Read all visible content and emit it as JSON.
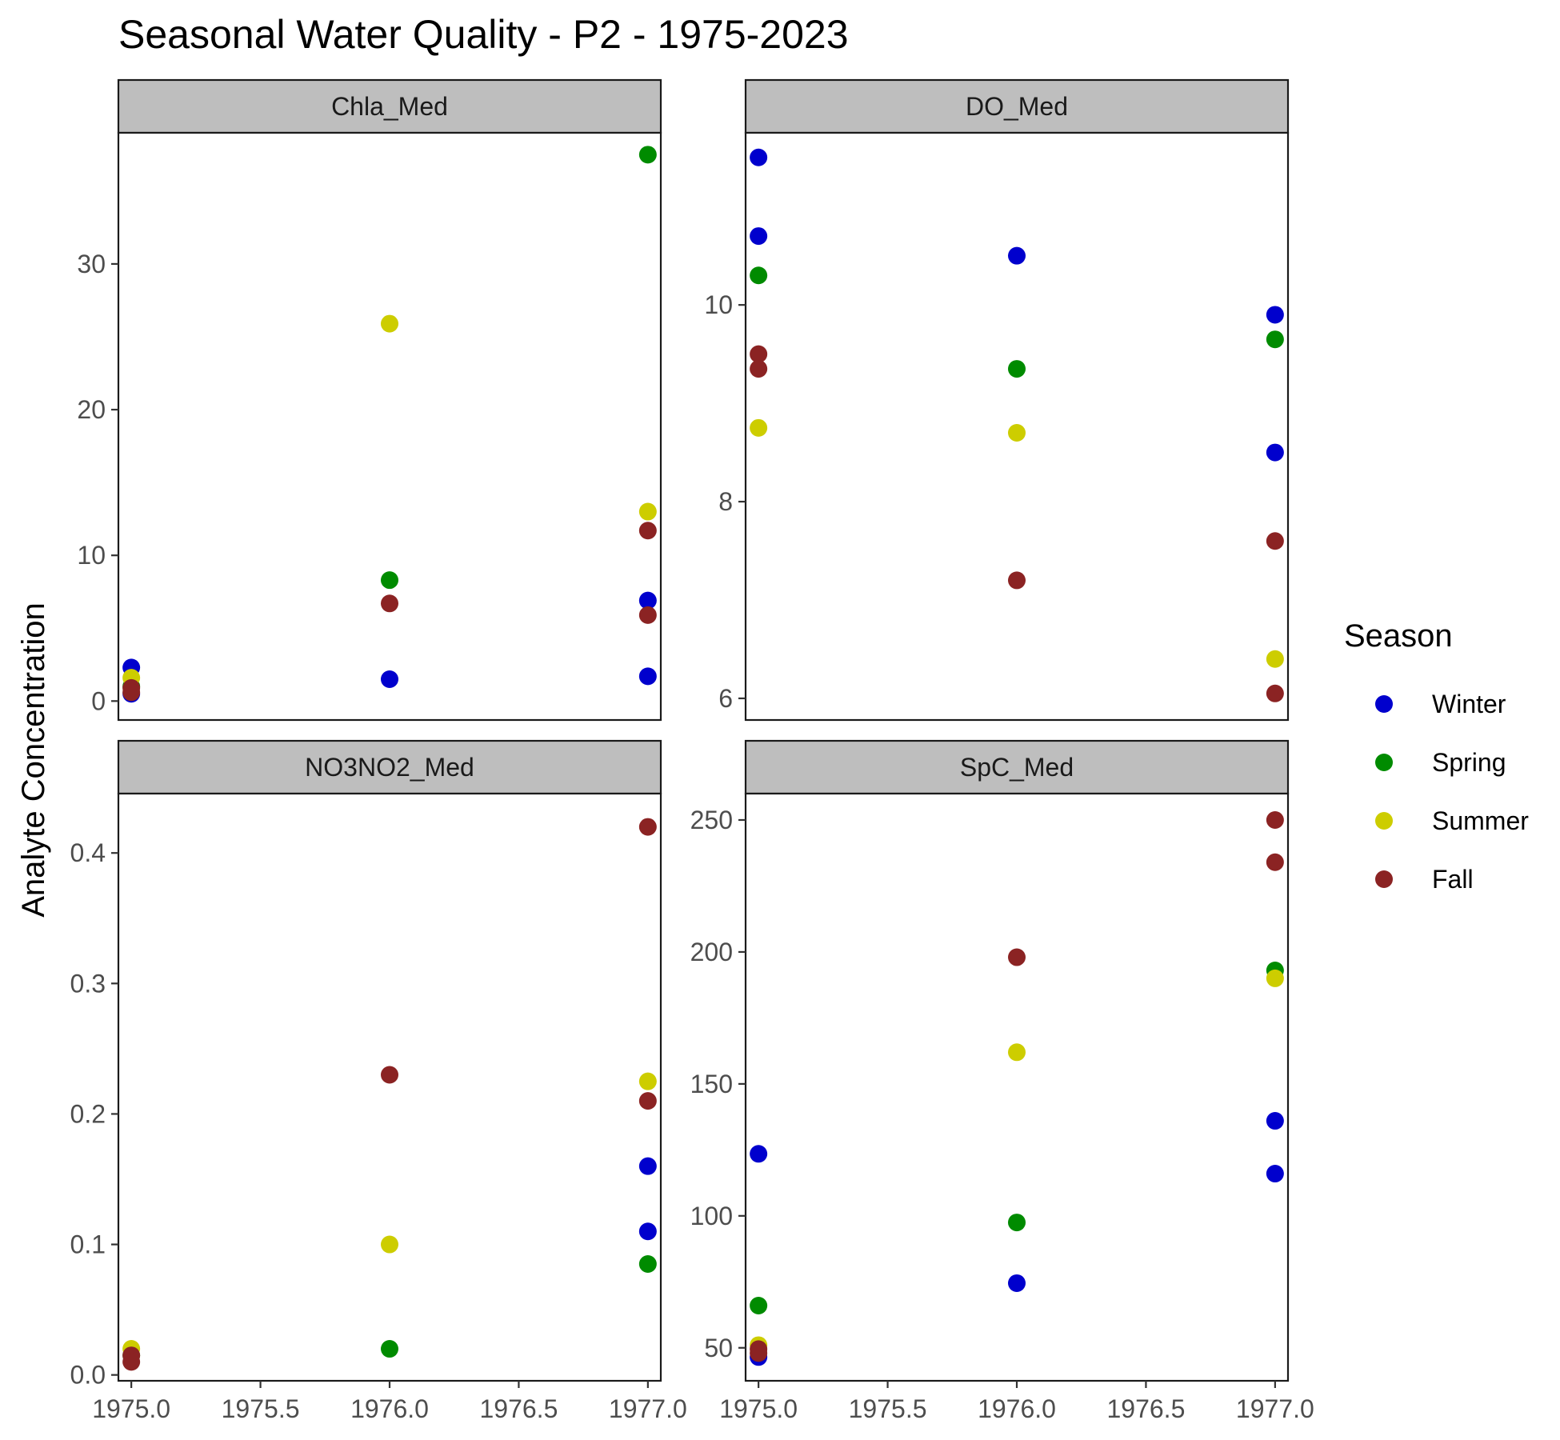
{
  "chart_data": {
    "type": "scatter",
    "title": "Seasonal Water Quality - P2 - 1975-2023",
    "ylabel": "Analyte Concentration",
    "xlabel": "",
    "xlim": [
      1974.95,
      1977.05
    ],
    "x_ticks": [
      1975.0,
      1975.5,
      1976.0,
      1976.5,
      1977.0
    ],
    "x_tick_labels": [
      "1975.0",
      "1975.5",
      "1976.0",
      "1976.5",
      "1977.0"
    ],
    "legend": {
      "title": "Season",
      "position": "right",
      "entries": [
        {
          "name": "Winter",
          "color": "#0000CD"
        },
        {
          "name": "Spring",
          "color": "#008B00"
        },
        {
          "name": "Summer",
          "color": "#CDCD00"
        },
        {
          "name": "Fall",
          "color": "#8B2323"
        }
      ]
    },
    "panels": [
      {
        "name": "Chla_Med",
        "ylim": [
          -1.3,
          39.0
        ],
        "y_ticks": [
          0,
          10,
          20,
          30
        ],
        "y_tick_labels": [
          "0",
          "10",
          "20",
          "30"
        ],
        "series": [
          {
            "name": "Winter",
            "x": [
              1975,
              1975,
              1976,
              1977,
              1977
            ],
            "y": [
              2.3,
              0.5,
              1.5,
              1.7,
              6.9
            ]
          },
          {
            "name": "Spring",
            "x": [
              1975,
              1976,
              1977
            ],
            "y": [
              1.0,
              8.3,
              37.5
            ]
          },
          {
            "name": "Summer",
            "x": [
              1975,
              1976,
              1977
            ],
            "y": [
              1.6,
              25.9,
              13.0
            ]
          },
          {
            "name": "Fall",
            "x": [
              1975,
              1975,
              1976,
              1977,
              1977
            ],
            "y": [
              0.9,
              0.6,
              6.7,
              11.7,
              5.9
            ]
          }
        ]
      },
      {
        "name": "DO_Med",
        "ylim": [
          5.78,
          11.75
        ],
        "y_ticks": [
          6,
          8,
          10
        ],
        "y_tick_labels": [
          "6",
          "8",
          "10"
        ],
        "series": [
          {
            "name": "Winter",
            "x": [
              1975,
              1975,
              1976,
              1977,
              1977
            ],
            "y": [
              11.5,
              10.7,
              10.5,
              9.9,
              8.5
            ]
          },
          {
            "name": "Spring",
            "x": [
              1975,
              1976,
              1977
            ],
            "y": [
              10.3,
              9.35,
              9.65
            ]
          },
          {
            "name": "Summer",
            "x": [
              1975,
              1976,
              1977
            ],
            "y": [
              8.75,
              8.7,
              6.4
            ]
          },
          {
            "name": "Fall",
            "x": [
              1975,
              1975,
              1976,
              1977,
              1977
            ],
            "y": [
              9.5,
              9.35,
              7.2,
              7.6,
              6.05
            ]
          }
        ]
      },
      {
        "name": "NO3NO2_Med",
        "ylim": [
          -0.0045,
          0.4455
        ],
        "y_ticks": [
          0.0,
          0.1,
          0.2,
          0.3,
          0.4
        ],
        "y_tick_labels": [
          "0.0",
          "0.1",
          "0.2",
          "0.3",
          "0.4"
        ],
        "series": [
          {
            "name": "Winter",
            "x": [
              1977,
              1977
            ],
            "y": [
              0.16,
              0.11
            ]
          },
          {
            "name": "Spring",
            "x": [
              1975,
              1976,
              1977
            ],
            "y": [
              0.015,
              0.02,
              0.085
            ]
          },
          {
            "name": "Summer",
            "x": [
              1975,
              1976,
              1977
            ],
            "y": [
              0.02,
              0.1,
              0.225
            ]
          },
          {
            "name": "Fall",
            "x": [
              1975,
              1975,
              1976,
              1977,
              1977
            ],
            "y": [
              0.015,
              0.01,
              0.23,
              0.42,
              0.21
            ]
          }
        ]
      },
      {
        "name": "SpC_Med",
        "ylim": [
          37.5,
          260.0
        ],
        "y_ticks": [
          50,
          100,
          150,
          200,
          250
        ],
        "y_tick_labels": [
          "50",
          "100",
          "150",
          "200",
          "250"
        ],
        "series": [
          {
            "name": "Winter",
            "x": [
              1975,
              1975,
              1976,
              1977,
              1977
            ],
            "y": [
              46.5,
              123.5,
              74.5,
              136.0,
              116.0
            ]
          },
          {
            "name": "Spring",
            "x": [
              1975,
              1976,
              1977
            ],
            "y": [
              66.0,
              97.5,
              193.0
            ]
          },
          {
            "name": "Summer",
            "x": [
              1975,
              1976,
              1977
            ],
            "y": [
              51.0,
              162.0,
              190.0
            ]
          },
          {
            "name": "Fall",
            "x": [
              1975,
              1975,
              1976,
              1977,
              1977
            ],
            "y": [
              49.5,
              48.0,
              198.0,
              250.0,
              234.0
            ]
          }
        ]
      }
    ]
  }
}
